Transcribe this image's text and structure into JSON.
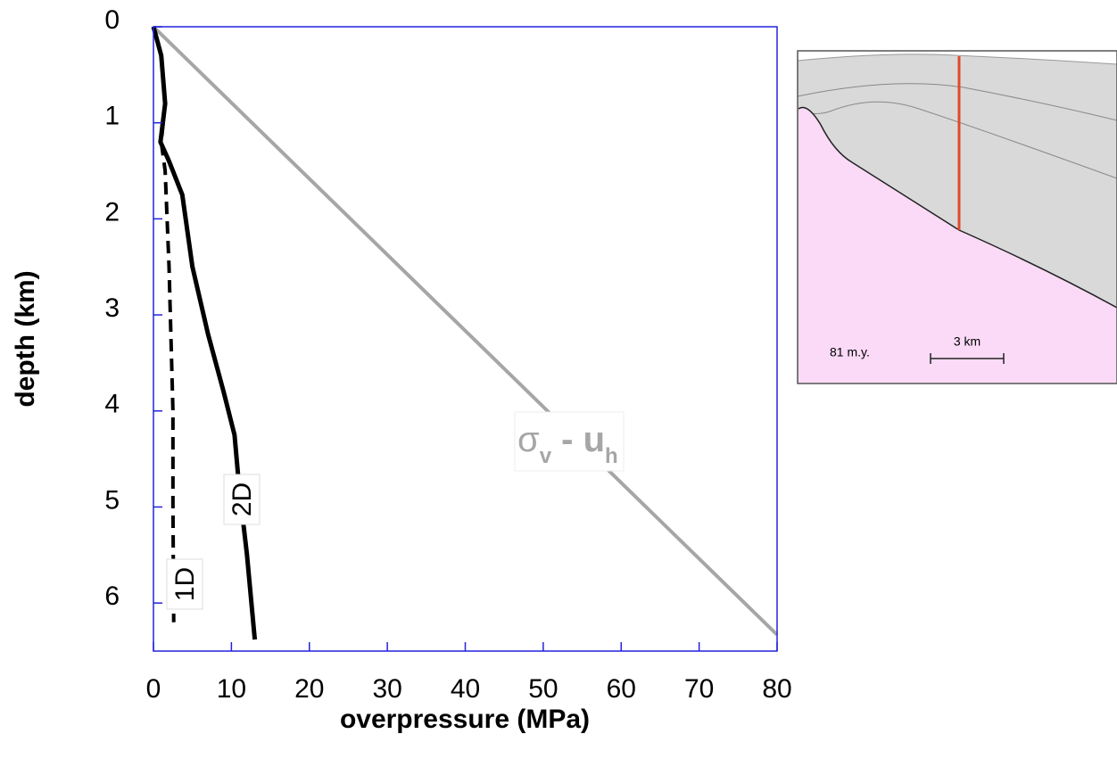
{
  "chart_data": {
    "type": "line",
    "xlabel": "overpressure (MPa)",
    "ylabel": "depth (km)",
    "xlim": [
      0,
      80
    ],
    "xticks": [
      0,
      10,
      20,
      30,
      40,
      50,
      60,
      70,
      80
    ],
    "ylim": [
      0,
      6.5
    ],
    "yticks": [
      0,
      1,
      2,
      3,
      4,
      5,
      6
    ],
    "y_inverted": true,
    "series": [
      {
        "name_parts": [
          "σ",
          "v",
          " - u",
          "h"
        ],
        "color": "#a6a6a6",
        "dashed": false,
        "x": [
          0,
          80
        ],
        "values": [
          0,
          6.33
        ]
      },
      {
        "name": "1D",
        "color": "#000000",
        "dashed": true,
        "x": [
          0,
          1,
          1.5,
          1,
          1.5,
          2,
          2.5,
          2.5,
          2.6
        ],
        "values": [
          0,
          0.3,
          0.8,
          1.2,
          1.5,
          2.5,
          4,
          5,
          6.2
        ]
      },
      {
        "name": "2D",
        "color": "#000000",
        "dashed": false,
        "x": [
          0,
          1,
          1.5,
          0.9,
          2,
          3.7,
          5,
          7,
          9,
          10.4,
          11,
          12,
          13
        ],
        "values": [
          0,
          0.3,
          0.8,
          1.2,
          1.4,
          1.75,
          2.5,
          3.2,
          3.8,
          4.25,
          4.8,
          5.5,
          6.38
        ]
      }
    ]
  },
  "inset": {
    "age_label": "81 m.y.",
    "scale_label": "3 km"
  }
}
